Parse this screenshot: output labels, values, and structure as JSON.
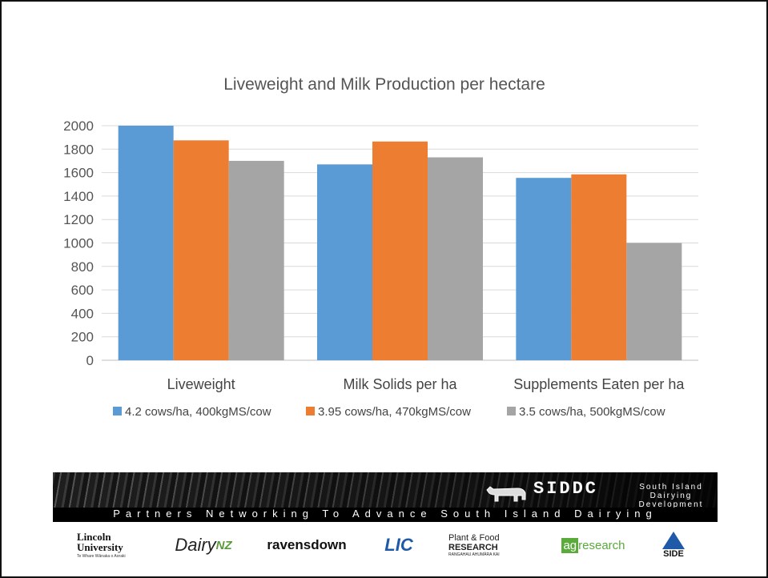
{
  "chart_data": {
    "type": "bar",
    "title": "Liveweight and Milk Production per hectare",
    "categories": [
      "Liveweight",
      "Milk Solids per ha",
      "Supplements Eaten per ha"
    ],
    "series": [
      {
        "name": "4.2 cows/ha, 400kgMS/cow",
        "values": [
          2000,
          1670,
          1555
        ],
        "color": "#5B9BD5"
      },
      {
        "name": "3.95 cows/ha, 470kgMS/cow",
        "values": [
          1875,
          1865,
          1585
        ],
        "color": "#ED7D31"
      },
      {
        "name": "3.5 cows/ha, 500kgMS/cow",
        "values": [
          1700,
          1730,
          1000
        ],
        "color": "#A5A5A5"
      }
    ],
    "ylim": [
      0,
      2000
    ],
    "yticks": [
      0,
      200,
      400,
      600,
      800,
      1000,
      1200,
      1400,
      1600,
      1800,
      2000
    ],
    "grid": true,
    "legend": "bottom",
    "xlabel": "",
    "ylabel": ""
  },
  "banner": {
    "org_short": "SIDDC",
    "org_full": "South Island Dairying Development Centre",
    "tagline": "Partners Networking To Advance South Island Dairying",
    "logos": {
      "lincoln_name": "Lincoln University",
      "lincoln_sub": "Te Whare Wānaka o Aoraki",
      "dairynz_main": "Dairy",
      "dairynz_suffix": "NZ",
      "ravensdown": "ravensdown",
      "lic": "LIC",
      "pfr_line1": "Plant & Food",
      "pfr_line2": "RESEARCH",
      "pfr_line3": "RANGAHAU AHUMĀRA KAI",
      "agresearch_ag": "ag",
      "agresearch_rest": "research",
      "side": "SIDE"
    }
  }
}
